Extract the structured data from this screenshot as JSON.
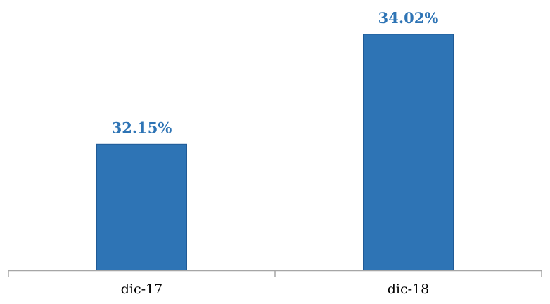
{
  "chart_data": {
    "type": "bar",
    "categories": [
      "dic-17",
      "dic-18"
    ],
    "values": [
      32.15,
      34.02
    ],
    "data_labels": [
      "32.15%",
      "34.02%"
    ],
    "title": "",
    "xlabel": "",
    "ylabel": "",
    "grid": false,
    "legend": "none",
    "colors": {
      "bar": "#2e74b5",
      "bar_edge": "#1f5a96",
      "label": "#2e74b5",
      "axis": "#a6a6a6"
    }
  }
}
